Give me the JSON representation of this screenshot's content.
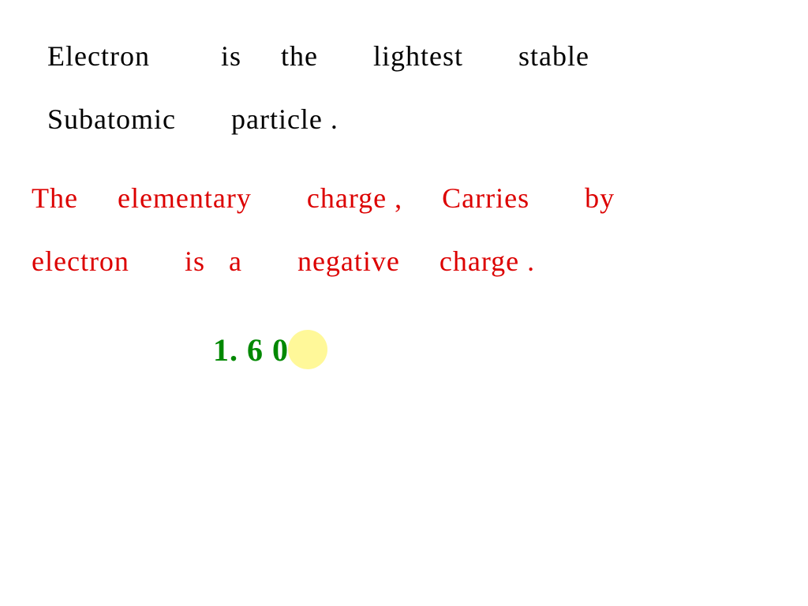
{
  "note": {
    "line1": {
      "words": [
        "Electron",
        "is",
        "the",
        "lightest",
        "stable"
      ],
      "color": "#000000",
      "fontsize": 36
    },
    "line2": {
      "words": [
        "Subatomic",
        "particle ."
      ],
      "color": "#000000",
      "fontsize": 36
    },
    "line3": {
      "words": [
        "The",
        "elementary",
        "charge ,",
        "Carries",
        "by"
      ],
      "color": "#dc0000",
      "fontsize": 36
    },
    "line4": {
      "words": [
        "electron",
        "is",
        "a",
        "negative",
        "charge ."
      ],
      "color": "#dc0000",
      "fontsize": 36
    },
    "line5": {
      "value": "1. 6 0",
      "color": "#008800",
      "fontsize": 40
    },
    "highlight": {
      "color": "#fff899",
      "radius": 25
    },
    "background_color": "#ffffff",
    "font_family": "cursive"
  }
}
